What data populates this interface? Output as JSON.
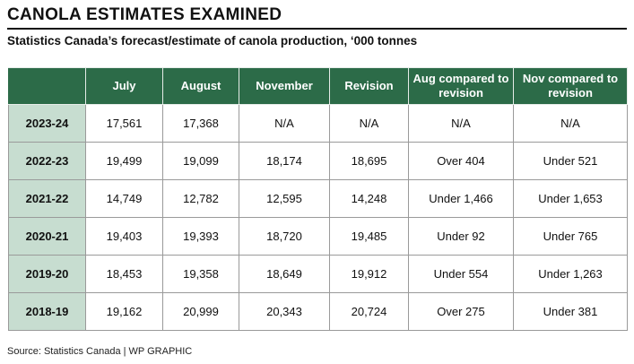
{
  "title": "CANOLA ESTIMATES EXAMINED",
  "subtitle": "Statistics Canada’s forecast/estimate of canola production, ‘000 tonnes",
  "table": {
    "headers": [
      "",
      "July",
      "August",
      "November",
      "Revision",
      "Aug compared to revision",
      "Nov compared to revision"
    ],
    "rows": [
      [
        "2023-24",
        "17,561",
        "17,368",
        "N/A",
        "N/A",
        "N/A",
        "N/A"
      ],
      [
        "2022-23",
        "19,499",
        "19,099",
        "18,174",
        "18,695",
        "Over 404",
        "Under 521"
      ],
      [
        "2021-22",
        "14,749",
        "12,782",
        "12,595",
        "14,248",
        "Under 1,466",
        "Under 1,653"
      ],
      [
        "2020-21",
        "19,403",
        "19,393",
        "18,720",
        "19,485",
        "Under 92",
        "Under 765"
      ],
      [
        "2019-20",
        "18,453",
        "19,358",
        "18,649",
        "19,912",
        "Under 554",
        "Under 1,263"
      ],
      [
        "2018-19",
        "19,162",
        "20,999",
        "20,343",
        "20,724",
        "Over 275",
        "Under 381"
      ]
    ]
  },
  "source": "Source: Statistics Canada  |  WP GRAPHIC",
  "colors": {
    "header_bg": "#2c6b48",
    "year_col_bg": "#c7ddd0"
  }
}
